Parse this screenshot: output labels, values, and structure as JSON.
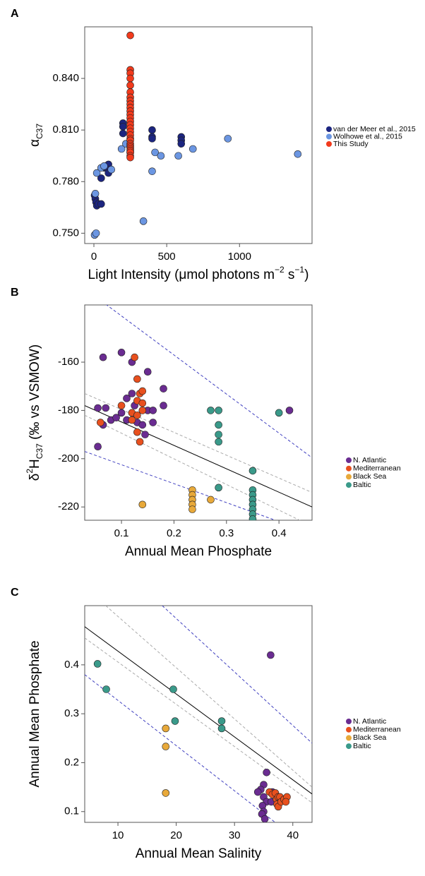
{
  "chart_data": [
    {
      "type": "scatter",
      "panel_label": "A",
      "x_label": [
        {
          "text": "Light Intensity (μmol photons m"
        },
        {
          "text": "−2",
          "shift": "sup"
        },
        {
          "text": " s"
        },
        {
          "text": "−1",
          "shift": "sup"
        },
        {
          "text": ")"
        }
      ],
      "y_label": [
        {
          "text": "α"
        },
        {
          "text": "C37",
          "shift": "sub"
        }
      ],
      "xlim": [
        -63,
        1498
      ],
      "ylim": [
        0.744,
        0.87
      ],
      "xticks": [
        0,
        500,
        1000
      ],
      "yticks": [
        {
          "value": 0.75,
          "label": "0.750"
        },
        {
          "value": 0.78,
          "label": "0.780"
        },
        {
          "value": 0.81,
          "label": "0.810"
        },
        {
          "value": 0.84,
          "label": "0.840"
        }
      ],
      "series": [
        {
          "name": "van der Meer et al., 2015",
          "color": "#1c2580",
          "x": [
            5,
            10,
            15,
            20,
            30,
            50,
            50,
            70,
            100,
            100,
            100,
            200,
            200,
            200,
            400,
            400,
            400,
            600,
            600,
            600
          ],
          "y": [
            0.772,
            0.77,
            0.768,
            0.766,
            0.767,
            0.767,
            0.782,
            0.788,
            0.79,
            0.787,
            0.785,
            0.814,
            0.812,
            0.808,
            0.81,
            0.806,
            0.805,
            0.806,
            0.804,
            0.802
          ]
        },
        {
          "name": "Wolhowe et al., 2015",
          "color": "#6b96e2",
          "x": [
            5,
            15,
            10,
            20,
            50,
            70,
            120,
            190,
            220,
            250,
            340,
            400,
            420,
            460,
            580,
            680,
            920,
            1400
          ],
          "y": [
            0.749,
            0.75,
            0.773,
            0.785,
            0.788,
            0.789,
            0.787,
            0.799,
            0.802,
            0.797,
            0.757,
            0.786,
            0.797,
            0.795,
            0.795,
            0.799,
            0.805,
            0.796
          ]
        },
        {
          "name": "This Study",
          "color": "#f23a1c",
          "x": [
            250,
            250,
            250,
            250,
            250,
            250,
            250,
            250,
            250,
            250,
            250,
            250,
            250,
            250,
            250,
            250,
            250,
            250,
            250,
            250,
            250,
            250,
            250,
            250,
            250,
            250,
            250,
            250
          ],
          "y": [
            0.865,
            0.845,
            0.843,
            0.84,
            0.836,
            0.832,
            0.829,
            0.827,
            0.825,
            0.823,
            0.821,
            0.819,
            0.817,
            0.815,
            0.813,
            0.811,
            0.809,
            0.807,
            0.805,
            0.804,
            0.802,
            0.801,
            0.8,
            0.799,
            0.798,
            0.797,
            0.795,
            0.794
          ]
        }
      ]
    },
    {
      "type": "scatter",
      "panel_label": "B",
      "x_label": [
        {
          "text": "Annual Mean Phosphate"
        }
      ],
      "y_label": [
        {
          "text": "δ"
        },
        {
          "text": "2",
          "shift": "sup"
        },
        {
          "text": "H"
        },
        {
          "text": "C37",
          "shift": "sub"
        },
        {
          "text": " (‰ vs VSMOW)"
        }
      ],
      "xlim": [
        0.03,
        0.463
      ],
      "ylim": [
        -225.5,
        -136.3
      ],
      "xticks": [
        0.1,
        0.2,
        0.3,
        0.4
      ],
      "yticks": [
        -220,
        -200,
        -180,
        -160
      ],
      "fit_lines": [
        {
          "color": "#000000",
          "dash": "none",
          "x": [
            0.03,
            0.463
          ],
          "y": [
            -178,
            -220
          ]
        },
        {
          "color": "#aaaaaa",
          "dash": "4 3",
          "x": [
            0.03,
            0.463
          ],
          "y": [
            -173,
            -214
          ]
        },
        {
          "color": "#aaaaaa",
          "dash": "4 3",
          "x": [
            0.03,
            0.463
          ],
          "y": [
            -182,
            -228
          ]
        },
        {
          "color": "#4040c0",
          "dash": "4 3",
          "x": [
            0.07,
            0.463
          ],
          "y": [
            -136,
            -199.6
          ]
        },
        {
          "color": "#4040c0",
          "dash": "4 3",
          "x": [
            0.03,
            0.393
          ],
          "y": [
            -197,
            -225.5
          ]
        }
      ],
      "series": [
        {
          "name": "N. Atlantic",
          "color": "#6a2c91",
          "x": [
            0.055,
            0.055,
            0.065,
            0.065,
            0.07,
            0.08,
            0.09,
            0.1,
            0.1,
            0.11,
            0.11,
            0.12,
            0.12,
            0.125,
            0.13,
            0.14,
            0.145,
            0.15,
            0.15,
            0.16,
            0.16,
            0.18,
            0.18,
            0.42
          ],
          "y": [
            -179,
            -195,
            -158,
            -186,
            -179,
            -184,
            -183,
            -156,
            -181,
            -175,
            -184,
            -160,
            -173,
            -178,
            -185,
            -186,
            -190,
            -164,
            -180,
            -180,
            -185,
            -171,
            -178,
            -180
          ]
        },
        {
          "name": "Mediterranean",
          "color": "#e8501e",
          "x": [
            0.06,
            0.1,
            0.12,
            0.125,
            0.13,
            0.13,
            0.13,
            0.135,
            0.14,
            0.14,
            0.14,
            0.135,
            0.13,
            0.12
          ],
          "y": [
            -185,
            -178,
            -181,
            -158,
            -167,
            -176,
            -189,
            -173,
            -172,
            -177,
            -180,
            -193,
            -182,
            -184
          ]
        },
        {
          "name": "Black Sea",
          "color": "#e8a93a",
          "x": [
            0.14,
            0.235,
            0.235,
            0.235,
            0.235,
            0.235,
            0.27
          ],
          "y": [
            -219,
            -213,
            -215,
            -217,
            -219,
            -221,
            -217
          ]
        },
        {
          "name": "Baltic",
          "color": "#3a9a8a",
          "x": [
            0.27,
            0.285,
            0.285,
            0.285,
            0.285,
            0.285,
            0.35,
            0.35,
            0.35,
            0.35,
            0.35,
            0.35,
            0.35,
            0.35,
            0.4
          ],
          "y": [
            -180,
            -180,
            -186,
            -190,
            -193,
            -212,
            -205,
            -213,
            -215,
            -217,
            -219,
            -221,
            -223,
            -225,
            -181
          ]
        }
      ]
    },
    {
      "type": "scatter",
      "panel_label": "C",
      "x_label": [
        {
          "text": "Annual Mean Salinity"
        }
      ],
      "y_label": [
        {
          "text": "Annual Mean Phosphate"
        }
      ],
      "xlim": [
        4.3,
        43.3
      ],
      "ylim": [
        0.078,
        0.521
      ],
      "xticks": [
        10,
        20,
        30,
        40
      ],
      "yticks": [
        0.1,
        0.2,
        0.3,
        0.4
      ],
      "fit_lines": [
        {
          "color": "#000000",
          "dash": "none",
          "x": [
            4.3,
            43.3
          ],
          "y": [
            0.478,
            0.136
          ]
        },
        {
          "color": "#aaaaaa",
          "dash": "4 3",
          "x": [
            7.9,
            43.3
          ],
          "y": [
            0.521,
            0.15
          ]
        },
        {
          "color": "#aaaaaa",
          "dash": "4 3",
          "x": [
            4.3,
            43.3
          ],
          "y": [
            0.455,
            0.118
          ]
        },
        {
          "color": "#4040c0",
          "dash": "4 3",
          "x": [
            17.6,
            43.3
          ],
          "y": [
            0.521,
            0.24
          ]
        },
        {
          "color": "#4040c0",
          "dash": "4 3",
          "x": [
            4.3,
            36.97
          ],
          "y": [
            0.38,
            0.078
          ]
        }
      ],
      "series": [
        {
          "name": "N. Atlantic",
          "color": "#6a2c91",
          "x": [
            36.2,
            35.5,
            35,
            34.5,
            34,
            35,
            35.5,
            34.8,
            35,
            34.7,
            35.2,
            35,
            35.5,
            36,
            36.3,
            36.5
          ],
          "y": [
            0.42,
            0.18,
            0.155,
            0.145,
            0.14,
            0.13,
            0.12,
            0.112,
            0.1,
            0.095,
            0.085,
            0.065,
            0.06,
            0.065,
            0.12,
            0.14
          ]
        },
        {
          "name": "Mediterranean",
          "color": "#e8501e",
          "x": [
            36,
            36.5,
            37,
            37.2,
            37.5,
            37.8,
            37.3,
            37.5,
            38,
            38.5,
            39,
            38.8,
            38.2
          ],
          "y": [
            0.14,
            0.135,
            0.138,
            0.125,
            0.13,
            0.13,
            0.115,
            0.11,
            0.12,
            0.125,
            0.13,
            0.12,
            0.063
          ]
        },
        {
          "name": "Black Sea",
          "color": "#e8a93a",
          "x": [
            18.2,
            18.2,
            18.2
          ],
          "y": [
            0.27,
            0.233,
            0.138
          ]
        },
        {
          "name": "Baltic",
          "color": "#3a9a8a",
          "x": [
            6.5,
            8,
            19.5,
            19.8,
            27.8,
            27.8
          ],
          "y": [
            0.402,
            0.35,
            0.35,
            0.285,
            0.285,
            0.27
          ]
        }
      ]
    }
  ]
}
